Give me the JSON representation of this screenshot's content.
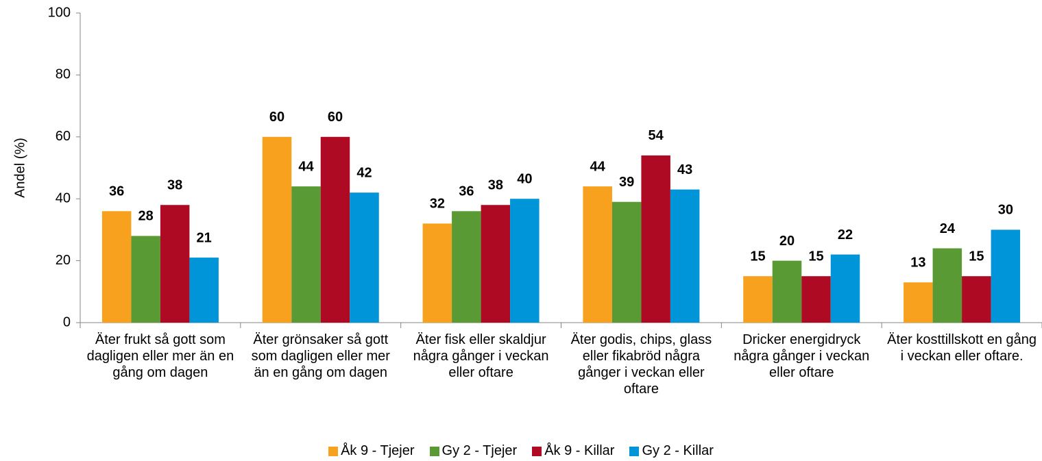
{
  "chart_data": {
    "type": "bar",
    "categories": [
      "Äter frukt så gott som dagligen eller mer än en gång om dagen",
      "Äter grönsaker så gott som dagligen eller mer än en gång om dagen",
      "Äter fisk eller skaldjur några gånger i veckan eller oftare",
      "Äter godis, chips, glass eller fikabröd några gånger i veckan eller oftare",
      "Dricker energidryck några gånger i veckan eller oftare",
      "Äter kosttillskott en gång i veckan eller oftare."
    ],
    "series": [
      {
        "name": "Åk 9 - Tjejer",
        "color": "#f7a11e",
        "values": [
          36,
          60,
          32,
          44,
          15,
          13
        ]
      },
      {
        "name": "Gy 2 - Tjejer",
        "color": "#5a9a35",
        "values": [
          28,
          44,
          36,
          39,
          20,
          24
        ]
      },
      {
        "name": "Åk 9 - Killar",
        "color": "#ae0a24",
        "values": [
          38,
          60,
          38,
          54,
          15,
          15
        ]
      },
      {
        "name": "Gy 2 - Killar",
        "color": "#0094d8",
        "values": [
          21,
          42,
          40,
          43,
          22,
          30
        ]
      }
    ],
    "ylabel": "Andel (%)",
    "ylim": [
      0,
      100
    ],
    "yticks": [
      0,
      20,
      40,
      60,
      80,
      100
    ],
    "legend": "bottom"
  }
}
